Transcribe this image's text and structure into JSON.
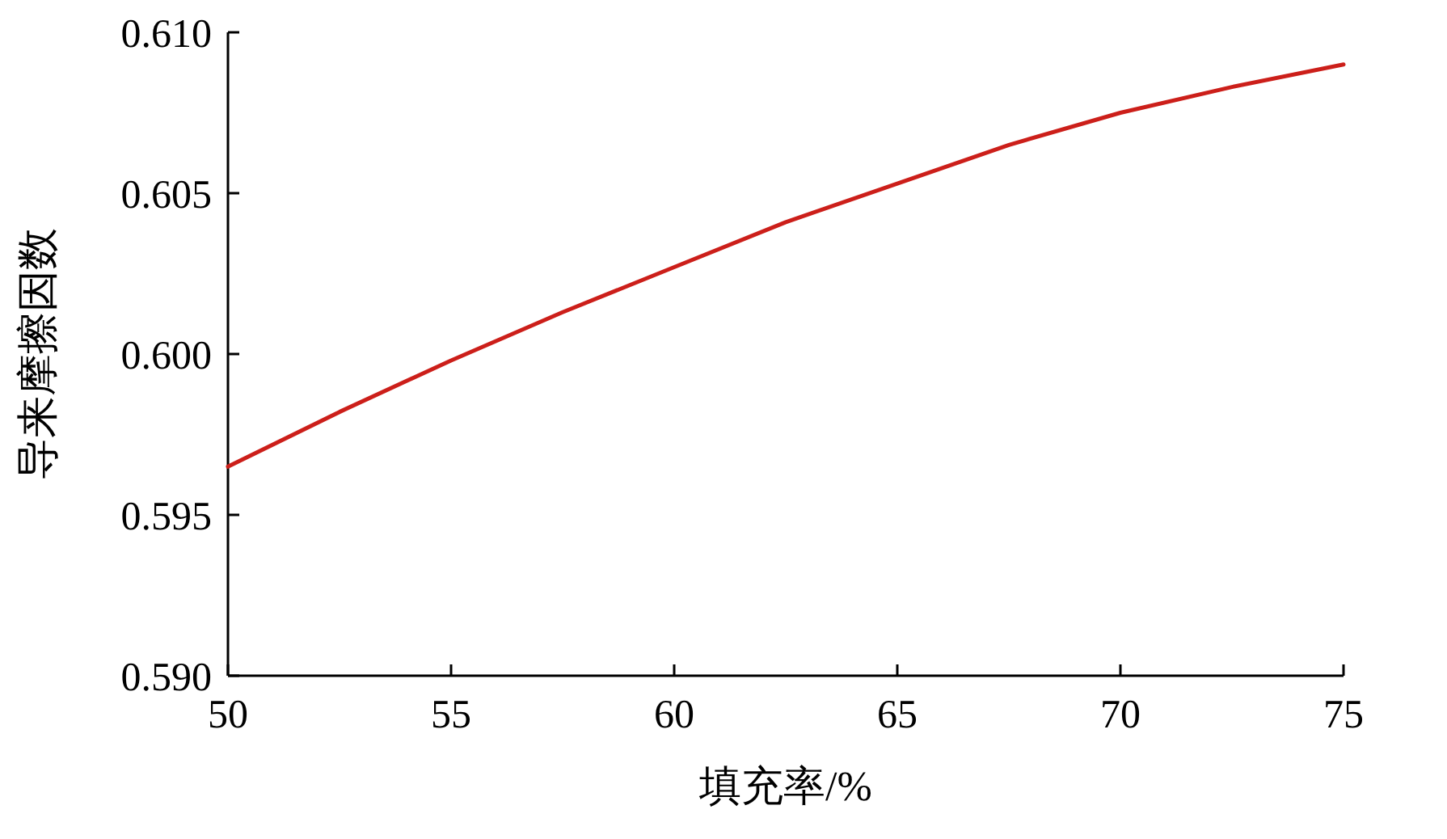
{
  "chart_data": {
    "type": "line",
    "xlabel": "填充率/%",
    "ylabel": "导来摩擦因数",
    "x": [
      50,
      52.5,
      55,
      57.5,
      60,
      62.5,
      65,
      67.5,
      70,
      72.5,
      75
    ],
    "series": [
      {
        "color": "#cc1f1a",
        "values": [
          0.5965,
          0.5982,
          0.5998,
          0.6013,
          0.6027,
          0.6041,
          0.6053,
          0.6065,
          0.6075,
          0.6083,
          0.609
        ]
      }
    ],
    "xlim": [
      50,
      75
    ],
    "ylim": [
      0.59,
      0.61
    ],
    "xticks": [
      50,
      55,
      60,
      65,
      70,
      75
    ],
    "yticks": [
      {
        "value": 0.59,
        "label": "0.590"
      },
      {
        "value": 0.595,
        "label": "0.595"
      },
      {
        "value": 0.6,
        "label": "0.600"
      },
      {
        "value": 0.605,
        "label": "0.605"
      },
      {
        "value": 0.61,
        "label": "0.610"
      }
    ]
  }
}
